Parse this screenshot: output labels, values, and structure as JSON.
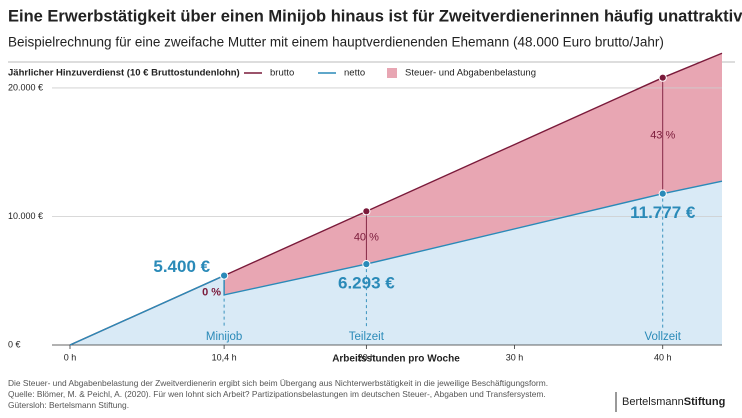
{
  "chart_data": {
    "type": "area",
    "title": "Eine Erwerbstätigkeit über einen Minijob hinaus ist für Zweitverdienerinnen häufig unattraktiv",
    "subtitle": "Beispielrechnung für eine zweifache Mutter mit einem hauptverdienenden Ehemann (48.000 Euro brutto/Jahr)",
    "legend_title": "Jährlicher Hinzuverdienst (10 € Bruttostundenlohn)",
    "xlabel": "Arbeitsstunden pro Woche",
    "xlim": [
      0,
      44
    ],
    "ylim": [
      0,
      23000
    ],
    "xticks": [
      {
        "value": 0,
        "label": "0 h"
      },
      {
        "value": 10.4,
        "label": "10,4 h"
      },
      {
        "value": 20,
        "label": "20 h"
      },
      {
        "value": 30,
        "label": "30 h"
      },
      {
        "value": 40,
        "label": "40 h"
      }
    ],
    "yticks": [
      {
        "value": 0,
        "label": "0 €"
      },
      {
        "value": 10000,
        "label": "10.000 €"
      },
      {
        "value": 20000,
        "label": "20.000 €"
      }
    ],
    "grid": true,
    "series": [
      {
        "name": "brutto",
        "color": "#7a1a3a",
        "x": [
          0,
          10.4,
          20,
          40,
          44
        ],
        "values": [
          0,
          5400,
          10400,
          20800,
          22700
        ]
      },
      {
        "name": "netto",
        "color": "#2a8ab8",
        "fill": "#d9eaf6",
        "x": [
          0,
          10.4,
          10.4,
          20,
          40,
          44
        ],
        "values": [
          0,
          5400,
          3900,
          6293,
          11777,
          12750
        ]
      }
    ],
    "burden_area": {
      "name": "Steuer- und Abgabenbelastung",
      "color": "#e8a6b3"
    },
    "annotations": [
      {
        "label": "Minijob",
        "x": 10.4,
        "brutto": 5400,
        "netto": 5400,
        "netto_label": "5.400 €",
        "burden": 0,
        "burden_label": "0 %"
      },
      {
        "label": "Teilzeit",
        "x": 20,
        "brutto": 10400,
        "netto": 6293,
        "netto_label": "6.293 €",
        "burden": 40,
        "burden_label": "40 %"
      },
      {
        "label": "Vollzeit",
        "x": 40,
        "brutto": 20800,
        "netto": 11777,
        "netto_label": "11.777 €",
        "burden": 43,
        "burden_label": "43 %"
      }
    ],
    "footnotes": [
      "Die Steuer- und Abgabenbelastung der Zweitverdienerin ergibt sich beim Übergang aus Nichterwerbstätigkeit in die jeweilige Beschäftigungsform.",
      "Quelle: Blömer, M. & Peichl, A. (2020). Für wen lohnt sich Arbeit? Partizipationsbelastungen im deutschen Steuer-, Abgaben und Transfersystem.",
      "Gütersloh: Bertelsmann Stiftung."
    ],
    "logo": [
      "Bertelsmann",
      "Stiftung"
    ]
  }
}
